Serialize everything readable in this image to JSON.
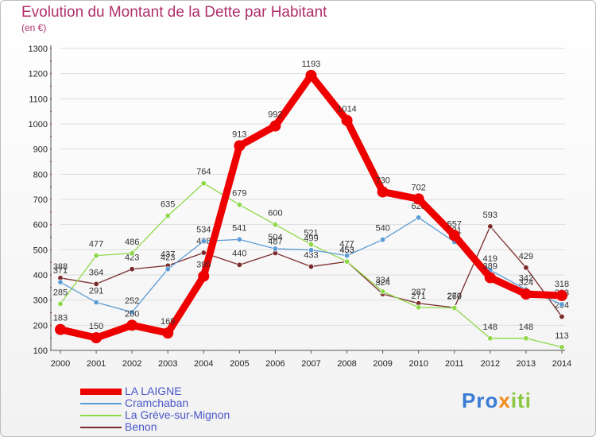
{
  "title": "Evolution du Montant de la Dette par Habitant",
  "subtitle": "(en €)",
  "logo": {
    "parts": [
      "Pro",
      "x",
      "iti"
    ],
    "colors": [
      "#3a7bd5",
      "#f08a1c",
      "#8cc63f"
    ]
  },
  "chart_data": {
    "type": "line",
    "title": "Evolution du Montant de la Dette par Habitant",
    "ylabel": "(en €)",
    "xlabel": "",
    "ylim": [
      100,
      1300
    ],
    "yticks": [
      100,
      200,
      300,
      400,
      500,
      600,
      700,
      800,
      900,
      1000,
      1100,
      1200,
      1300
    ],
    "x": [
      "2000",
      "2001",
      "2002",
      "2003",
      "2004",
      "2005",
      "2006",
      "2007",
      "2008",
      "2009",
      "2010",
      "2011",
      "2012",
      "2013",
      "2014"
    ],
    "series": [
      {
        "name": "Benon",
        "color": "#7a2a2a",
        "values": [
          388,
          364,
          423,
          437,
          488,
          440,
          487,
          433,
          453,
          324,
          287,
          270,
          593,
          429,
          234
        ]
      },
      {
        "name": "La Grève-sur-Mignon",
        "color": "#8ed84a",
        "values": [
          285,
          477,
          486,
          635,
          764,
          679,
          600,
          521,
          453,
          334,
          271,
          269,
          148,
          148,
          113
        ]
      },
      {
        "name": "Cramchaban",
        "color": "#5b9bd5",
        "values": [
          371,
          291,
          252,
          423,
          534,
          541,
          504,
          499,
          477,
          540,
          628,
          531,
          419,
          342,
          283
        ]
      },
      {
        "name": "LA LAIGNE",
        "color": "#ee0000",
        "values": [
          183,
          150,
          200,
          169,
          395,
          913,
          992,
          1193,
          1014,
          730,
          702,
          557,
          389,
          324,
          318
        ]
      }
    ],
    "legend": [
      "LA LAIGNE",
      "Cramchaban",
      "La Grève-sur-Mignon",
      "Benon"
    ],
    "legend_position": "bottom-left"
  }
}
